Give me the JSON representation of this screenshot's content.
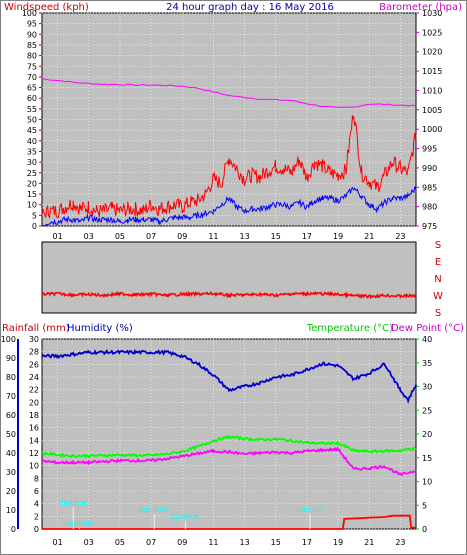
{
  "header": {
    "left_label": "Windspeed (kph)",
    "title": "24 hour graph day : 16 May 2016",
    "right_label": "Barometer (hpa)"
  },
  "colors": {
    "windspeed": "#ff0000",
    "gust": "#ff0000",
    "wind_avg": "#0000ff",
    "barometer": "#ff00ff",
    "direction": "#ff0000",
    "humidity": "#0000cc",
    "temperature": "#00ff00",
    "dew_point": "#ff00ff",
    "rainfall": "#ff0000",
    "plot_bg": "#c0c0c0",
    "annotation": "#00ffff"
  },
  "chart_data": [
    {
      "type": "line",
      "name": "wind-barometer",
      "x_ticks": [
        "01",
        "03",
        "05",
        "07",
        "09",
        "11",
        "13",
        "15",
        "17",
        "19",
        "21",
        "23"
      ],
      "x_range_hours": [
        0,
        24
      ],
      "left_axis": {
        "label": "Windspeed (kph)",
        "ticks": [
          "0",
          "5",
          "10",
          "15",
          "20",
          "25",
          "30",
          "35",
          "40",
          "45",
          "50",
          "55",
          "60",
          "65",
          "70",
          "75",
          "80",
          "85",
          "90",
          "95",
          "100"
        ],
        "range": [
          0,
          100
        ]
      },
      "right_axis": {
        "label": "Barometer (hpa)",
        "ticks": [
          "975",
          "980",
          "985",
          "990",
          "995",
          "1000",
          "1005",
          "1010",
          "1015",
          "1020",
          "1025",
          "1030"
        ],
        "range": [
          975,
          1030
        ]
      },
      "series": [
        {
          "name": "Barometer",
          "axis": "right",
          "x": [
            0,
            1,
            2,
            3,
            4,
            5,
            6,
            7,
            8,
            9,
            10,
            11,
            12,
            13,
            14,
            15,
            16,
            17,
            18,
            19,
            20,
            21,
            22,
            23,
            24
          ],
          "values": [
            1013.0,
            1012.6,
            1012.1,
            1011.8,
            1011.6,
            1011.5,
            1011.4,
            1011.4,
            1011.3,
            1011.1,
            1010.6,
            1009.6,
            1008.7,
            1008.2,
            1007.8,
            1007.6,
            1007.4,
            1006.6,
            1005.9,
            1005.5,
            1005.7,
            1006.5,
            1006.4,
            1006.2,
            1006.0
          ]
        },
        {
          "name": "Gust",
          "axis": "left",
          "x": [
            0,
            0.5,
            1,
            1.5,
            2,
            2.5,
            3,
            3.5,
            4,
            4.5,
            5,
            5.5,
            6,
            6.5,
            7,
            7.5,
            8,
            8.5,
            9,
            9.5,
            10,
            10.5,
            11,
            11.5,
            12,
            12.5,
            13,
            13.5,
            14,
            14.5,
            15,
            15.5,
            16,
            16.5,
            17,
            17.5,
            18,
            18.5,
            19,
            19.5,
            20,
            20.5,
            21,
            21.5,
            22,
            22.5,
            23,
            23.5,
            24
          ],
          "values": [
            5,
            7,
            7,
            9,
            11,
            8,
            9,
            7,
            7,
            8,
            7,
            8,
            8,
            7,
            10,
            8,
            9,
            10,
            9,
            11,
            12,
            15,
            22,
            20,
            32,
            27,
            22,
            24,
            23,
            26,
            28,
            27,
            25,
            31,
            23,
            30,
            28,
            25,
            24,
            26,
            54,
            25,
            21,
            18,
            24,
            30,
            27,
            25,
            43
          ]
        },
        {
          "name": "Average",
          "axis": "left",
          "x": [
            0,
            0.5,
            1,
            1.5,
            2,
            2.5,
            3,
            3.5,
            4,
            4.5,
            5,
            5.5,
            6,
            6.5,
            7,
            7.5,
            8,
            8.5,
            9,
            9.5,
            10,
            10.5,
            11,
            11.5,
            12,
            12.5,
            13,
            13.5,
            14,
            14.5,
            15,
            15.5,
            16,
            16.5,
            17,
            17.5,
            18,
            18.5,
            19,
            19.5,
            20,
            20.5,
            21,
            21.5,
            22,
            22.5,
            23,
            23.5,
            24
          ],
          "values": [
            0,
            2,
            2,
            3,
            3,
            2,
            4,
            3,
            3,
            3,
            2,
            3,
            3,
            3,
            3,
            2,
            3,
            4,
            4,
            4,
            5,
            6,
            7,
            10,
            13,
            9,
            7,
            8,
            8,
            9,
            10,
            10,
            9,
            11,
            9,
            12,
            13,
            13,
            12,
            14,
            18,
            14,
            10,
            8,
            11,
            13,
            13,
            14,
            18
          ]
        }
      ]
    },
    {
      "type": "scatter",
      "name": "wind-direction",
      "right_labels": [
        "S",
        "E",
        "N",
        "W",
        "S"
      ],
      "x_range_hours": [
        0,
        24
      ],
      "series": [
        {
          "name": "Direction",
          "x": [
            0,
            1,
            2,
            3,
            4,
            5,
            6,
            7,
            8,
            9,
            10,
            11,
            12,
            13,
            14,
            15,
            16,
            17,
            18,
            19,
            20,
            21,
            22,
            23,
            24
          ],
          "values": [
            265,
            262,
            268,
            266,
            270,
            262,
            268,
            264,
            270,
            265,
            264,
            262,
            270,
            268,
            265,
            270,
            263,
            262,
            262,
            266,
            272,
            276,
            271,
            274,
            272
          ]
        }
      ]
    },
    {
      "type": "line",
      "name": "rain-humidity-temperature",
      "x_ticks": [
        "01",
        "03",
        "05",
        "07",
        "09",
        "11",
        "13",
        "15",
        "17",
        "19",
        "21",
        "23"
      ],
      "x_range_hours": [
        0,
        24
      ],
      "axis_titles": {
        "rainfall": "Rainfall (mm)",
        "humidity": "Humidity (%)",
        "temperature": "Temperature (°C)",
        "dew_point": "Dew Point (°C)"
      },
      "humidity_axis": {
        "ticks": [
          "0",
          "10",
          "20",
          "30",
          "40",
          "50",
          "60",
          "70",
          "80",
          "90",
          "100"
        ],
        "range": [
          0,
          100
        ]
      },
      "rain_axis": {
        "ticks": [
          "0",
          "2",
          "4",
          "6",
          "8",
          "10",
          "12",
          "14",
          "16",
          "18",
          "20",
          "22",
          "24",
          "26",
          "28",
          "30"
        ],
        "range": [
          0,
          30
        ]
      },
      "temperature_axis": {
        "ticks": [
          "0",
          "5",
          "10",
          "15",
          "20",
          "25",
          "30",
          "35",
          "40"
        ],
        "range": [
          0,
          40
        ]
      },
      "annotations": [
        {
          "label": "Hightide",
          "hour": 2.0,
          "row": 0
        },
        {
          "label": "Sun Rise",
          "hour": 7.2,
          "row": 1
        },
        {
          "label": "Lowtide",
          "hour": 9.2,
          "row": 2
        },
        {
          "label": "Hightide",
          "hour": 2.4,
          "row": 3
        },
        {
          "label": "Sun Set",
          "hour": 17.2,
          "row": 1
        }
      ],
      "series": [
        {
          "name": "Humidity",
          "axis": "humidity",
          "x": [
            0,
            1,
            2,
            3,
            4,
            5,
            6,
            7,
            8,
            9,
            10,
            11,
            12,
            13,
            14,
            15,
            16,
            17,
            18,
            19,
            20,
            21,
            22,
            23,
            23.5,
            24
          ],
          "values": [
            91,
            91,
            92,
            93,
            93,
            93,
            93,
            93,
            93,
            91,
            87,
            81,
            73,
            75,
            77,
            80,
            81,
            84,
            87,
            86,
            79,
            82,
            87,
            73,
            68,
            76
          ]
        },
        {
          "name": "Temperature",
          "axis": "temperature",
          "x": [
            0,
            1,
            2,
            3,
            4,
            5,
            6,
            7,
            8,
            9,
            10,
            11,
            12,
            13,
            14,
            15,
            16,
            17,
            18,
            19,
            20,
            21,
            22,
            23,
            24
          ],
          "values": [
            16.0,
            15.6,
            15.4,
            15.4,
            15.5,
            15.6,
            15.5,
            15.5,
            15.8,
            16.3,
            17.3,
            18.6,
            19.4,
            19.0,
            18.8,
            18.9,
            18.6,
            18.2,
            18.0,
            18.1,
            16.5,
            16.3,
            16.4,
            16.5,
            17.0
          ]
        },
        {
          "name": "Dew Point",
          "axis": "temperature",
          "x": [
            0,
            1,
            2,
            3,
            4,
            5,
            6,
            7,
            8,
            9,
            10,
            11,
            12,
            13,
            14,
            15,
            16,
            17,
            18,
            19,
            20,
            21,
            22,
            23,
            24
          ],
          "values": [
            14.3,
            14.0,
            14.0,
            14.0,
            14.2,
            14.4,
            14.4,
            14.4,
            14.8,
            15.3,
            15.9,
            16.4,
            16.2,
            15.8,
            16.0,
            16.2,
            16.0,
            16.4,
            16.6,
            16.8,
            12.6,
            12.8,
            13.2,
            11.4,
            12.3
          ]
        },
        {
          "name": "Rainfall",
          "axis": "rain",
          "x": [
            0,
            18.5,
            19.3,
            19.4,
            20.5,
            21.0,
            22.0,
            22.5,
            23.6,
            23.7,
            24
          ],
          "values": [
            0,
            0,
            0,
            1.6,
            1.7,
            1.8,
            1.9,
            2.1,
            2.1,
            0.2,
            0.2
          ]
        }
      ]
    }
  ]
}
